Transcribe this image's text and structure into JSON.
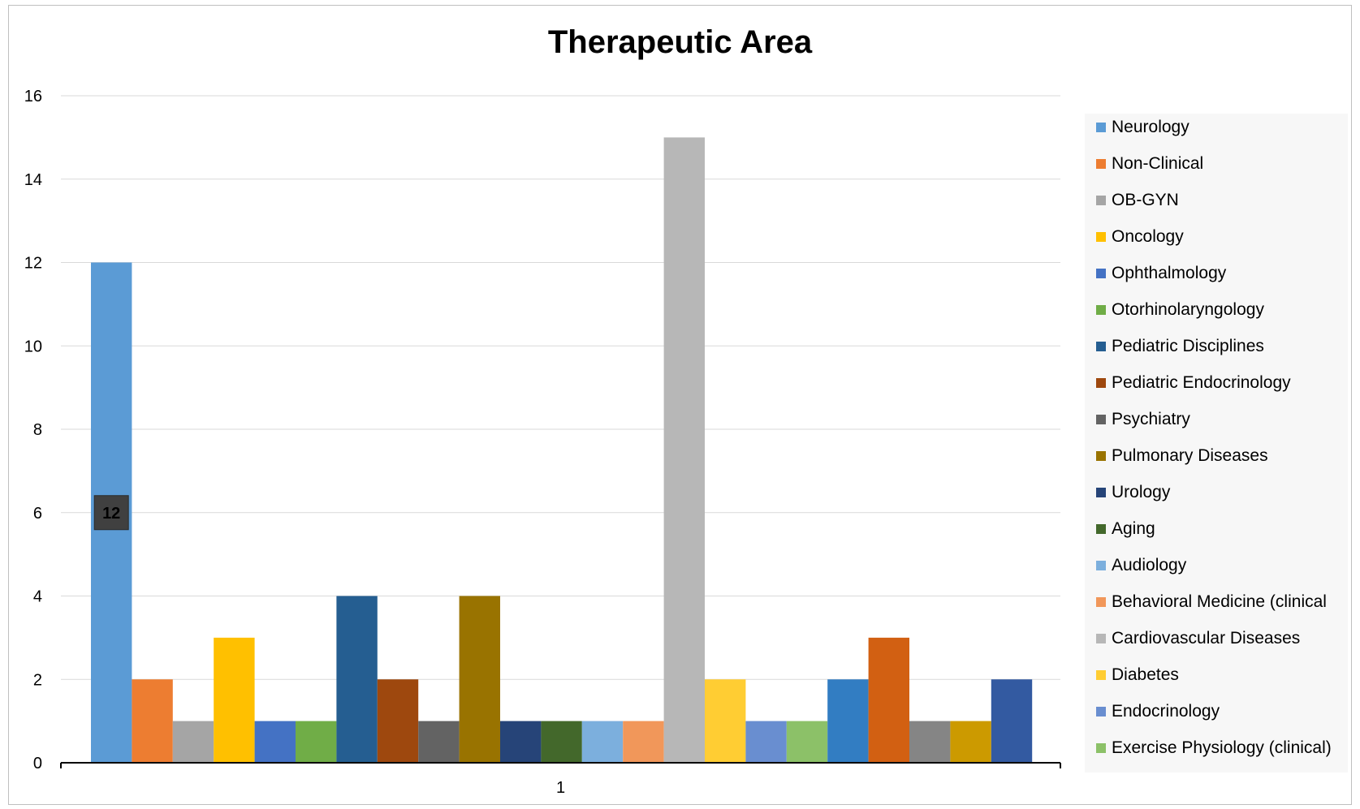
{
  "chart_data": {
    "type": "bar",
    "title": "Therapeutic Area",
    "xlabel": "",
    "ylabel": "",
    "categories": [
      "1"
    ],
    "ylim": [
      0,
      16
    ],
    "yticks": [
      0,
      2,
      4,
      6,
      8,
      10,
      12,
      14,
      16
    ],
    "grid": true,
    "legend_position": "right",
    "series": [
      {
        "name": "Neurology",
        "values": [
          12
        ],
        "color": "#5b9bd5"
      },
      {
        "name": "Non-Clinical",
        "values": [
          2
        ],
        "color": "#ed7d31"
      },
      {
        "name": "OB-GYN",
        "values": [
          1
        ],
        "color": "#a5a5a5"
      },
      {
        "name": "Oncology",
        "values": [
          3
        ],
        "color": "#ffc000"
      },
      {
        "name": "Ophthalmology",
        "values": [
          1
        ],
        "color": "#4472c4"
      },
      {
        "name": "Otorhinolaryngology",
        "values": [
          1
        ],
        "color": "#70ad47"
      },
      {
        "name": "Pediatric Disciplines",
        "values": [
          4
        ],
        "color": "#255e91"
      },
      {
        "name": "Pediatric Endocrinology",
        "values": [
          2
        ],
        "color": "#9e480e"
      },
      {
        "name": "Psychiatry",
        "values": [
          1
        ],
        "color": "#636363"
      },
      {
        "name": "Pulmonary Diseases",
        "values": [
          4
        ],
        "color": "#997300"
      },
      {
        "name": "Urology",
        "values": [
          1
        ],
        "color": "#264478"
      },
      {
        "name": "Aging",
        "values": [
          1
        ],
        "color": "#43682b"
      },
      {
        "name": "Audiology",
        "values": [
          1
        ],
        "color": "#7cafdd"
      },
      {
        "name": "Behavioral Medicine (clinical",
        "values": [
          1
        ],
        "color": "#f1975a"
      },
      {
        "name": "Cardiovascular Diseases",
        "values": [
          15
        ],
        "color": "#b7b7b7"
      },
      {
        "name": "Diabetes",
        "values": [
          2
        ],
        "color": "#ffcd33"
      },
      {
        "name": "Endocrinology",
        "values": [
          1
        ],
        "color": "#698ed0"
      },
      {
        "name": "Exercise Physiology (clinical)",
        "values": [
          1
        ],
        "color": "#8cc168"
      },
      {
        "name": "",
        "values": [
          2
        ],
        "color": "#327dc2"
      },
      {
        "name": "",
        "values": [
          3
        ],
        "color": "#d26012"
      },
      {
        "name": "",
        "values": [
          1
        ],
        "color": "#858585"
      },
      {
        "name": "",
        "values": [
          1
        ],
        "color": "#cc9a00"
      },
      {
        "name": "",
        "values": [
          2
        ],
        "color": "#335aa1"
      }
    ],
    "annotations": [
      {
        "series_index": 0,
        "text": "12"
      }
    ]
  }
}
